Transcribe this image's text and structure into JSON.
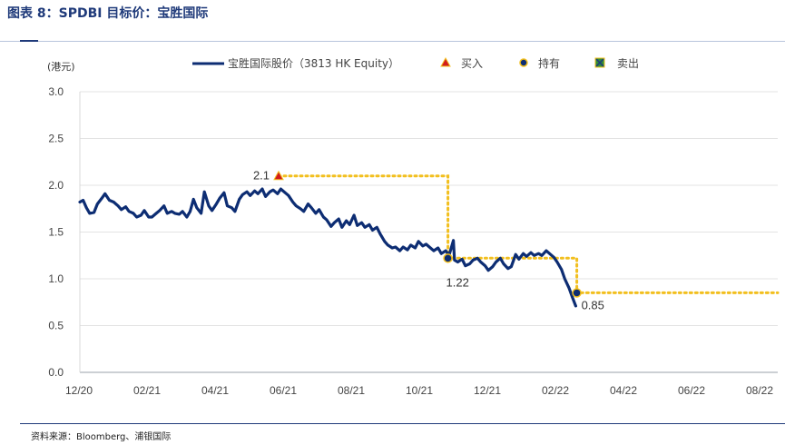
{
  "figure": {
    "title": "图表 8：SPDBI 目标价：宝胜国际",
    "source": "资料来源：Bloomberg、浦银国际"
  },
  "colors": {
    "price_line": "#0d2d73",
    "target_line": "#f2bf1e",
    "buy_marker": "#d21c1c",
    "hold_marker": "#0d2d73",
    "sell_marker": "#2f8c3a"
  },
  "chart_data": {
    "type": "line",
    "unit_label": "(港元)",
    "ylim": [
      0,
      3.0
    ],
    "yticks": [
      "0.0",
      "0.5",
      "1.0",
      "1.5",
      "2.0",
      "2.5",
      "3.0"
    ],
    "xticks": [
      "12/20",
      "02/21",
      "04/21",
      "06/21",
      "08/21",
      "10/21",
      "12/21",
      "02/22",
      "04/22",
      "06/22",
      "08/22"
    ],
    "xlim": [
      "2020-12-01",
      "2022-09-01"
    ],
    "grid": "horizontal",
    "legend": {
      "position": "top",
      "entries": [
        {
          "label": "宝胜国际股价（3813 HK Equity）",
          "marker": "line"
        },
        {
          "label": "买入",
          "marker": "triangle"
        },
        {
          "label": "持有",
          "marker": "circle"
        },
        {
          "label": "卖出",
          "marker": "square-x"
        }
      ]
    },
    "series": [
      {
        "name": "宝胜国际股价（3813 HK Equity）",
        "points": [
          [
            "2020-12-01",
            1.82
          ],
          [
            "2020-12-04",
            1.84
          ],
          [
            "2020-12-07",
            1.76
          ],
          [
            "2020-12-10",
            1.7
          ],
          [
            "2020-12-14",
            1.71
          ],
          [
            "2020-12-17",
            1.8
          ],
          [
            "2020-12-21",
            1.86
          ],
          [
            "2020-12-24",
            1.91
          ],
          [
            "2020-12-28",
            1.84
          ],
          [
            "2021-01-01",
            1.82
          ],
          [
            "2021-01-05",
            1.78
          ],
          [
            "2021-01-08",
            1.74
          ],
          [
            "2021-01-12",
            1.77
          ],
          [
            "2021-01-15",
            1.72
          ],
          [
            "2021-01-19",
            1.7
          ],
          [
            "2021-01-22",
            1.66
          ],
          [
            "2021-01-26",
            1.68
          ],
          [
            "2021-01-29",
            1.73
          ],
          [
            "2021-02-02",
            1.66
          ],
          [
            "2021-02-05",
            1.66
          ],
          [
            "2021-02-09",
            1.7
          ],
          [
            "2021-02-12",
            1.73
          ],
          [
            "2021-02-16",
            1.78
          ],
          [
            "2021-02-19",
            1.7
          ],
          [
            "2021-02-23",
            1.72
          ],
          [
            "2021-02-26",
            1.7
          ],
          [
            "2021-03-02",
            1.69
          ],
          [
            "2021-03-05",
            1.72
          ],
          [
            "2021-03-09",
            1.66
          ],
          [
            "2021-03-12",
            1.72
          ],
          [
            "2021-03-15",
            1.85
          ],
          [
            "2021-03-18",
            1.76
          ],
          [
            "2021-03-22",
            1.7
          ],
          [
            "2021-03-25",
            1.93
          ],
          [
            "2021-03-29",
            1.78
          ],
          [
            "2021-04-01",
            1.73
          ],
          [
            "2021-04-05",
            1.8
          ],
          [
            "2021-04-08",
            1.86
          ],
          [
            "2021-04-12",
            1.92
          ],
          [
            "2021-04-15",
            1.78
          ],
          [
            "2021-04-19",
            1.76
          ],
          [
            "2021-04-22",
            1.72
          ],
          [
            "2021-04-26",
            1.85
          ],
          [
            "2021-04-29",
            1.9
          ],
          [
            "2021-05-03",
            1.93
          ],
          [
            "2021-05-06",
            1.89
          ],
          [
            "2021-05-10",
            1.94
          ],
          [
            "2021-05-13",
            1.91
          ],
          [
            "2021-05-17",
            1.96
          ],
          [
            "2021-05-20",
            1.88
          ],
          [
            "2021-05-24",
            1.93
          ],
          [
            "2021-05-27",
            1.95
          ],
          [
            "2021-05-31",
            1.91
          ],
          [
            "2021-06-03",
            1.96
          ],
          [
            "2021-06-07",
            1.92
          ],
          [
            "2021-06-10",
            1.89
          ],
          [
            "2021-06-14",
            1.82
          ],
          [
            "2021-06-17",
            1.78
          ],
          [
            "2021-06-21",
            1.75
          ],
          [
            "2021-06-24",
            1.72
          ],
          [
            "2021-06-28",
            1.8
          ],
          [
            "2021-07-01",
            1.76
          ],
          [
            "2021-07-05",
            1.7
          ],
          [
            "2021-07-08",
            1.74
          ],
          [
            "2021-07-12",
            1.66
          ],
          [
            "2021-07-15",
            1.63
          ],
          [
            "2021-07-19",
            1.56
          ],
          [
            "2021-07-22",
            1.6
          ],
          [
            "2021-07-26",
            1.64
          ],
          [
            "2021-07-29",
            1.55
          ],
          [
            "2021-08-02",
            1.62
          ],
          [
            "2021-08-05",
            1.58
          ],
          [
            "2021-08-09",
            1.68
          ],
          [
            "2021-08-12",
            1.57
          ],
          [
            "2021-08-16",
            1.6
          ],
          [
            "2021-08-19",
            1.55
          ],
          [
            "2021-08-23",
            1.58
          ],
          [
            "2021-08-26",
            1.52
          ],
          [
            "2021-08-30",
            1.55
          ],
          [
            "2021-09-02",
            1.48
          ],
          [
            "2021-09-06",
            1.4
          ],
          [
            "2021-09-09",
            1.36
          ],
          [
            "2021-09-13",
            1.33
          ],
          [
            "2021-09-16",
            1.34
          ],
          [
            "2021-09-20",
            1.3
          ],
          [
            "2021-09-23",
            1.34
          ],
          [
            "2021-09-27",
            1.31
          ],
          [
            "2021-09-30",
            1.36
          ],
          [
            "2021-10-04",
            1.33
          ],
          [
            "2021-10-07",
            1.4
          ],
          [
            "2021-10-11",
            1.35
          ],
          [
            "2021-10-14",
            1.37
          ],
          [
            "2021-10-18",
            1.33
          ],
          [
            "2021-10-21",
            1.3
          ],
          [
            "2021-10-25",
            1.33
          ],
          [
            "2021-10-28",
            1.27
          ],
          [
            "2021-11-01",
            1.3
          ],
          [
            "2021-11-04",
            1.25
          ],
          [
            "2021-11-08",
            1.41
          ],
          [
            "2021-11-09",
            1.2
          ],
          [
            "2021-11-12",
            1.18
          ],
          [
            "2021-11-16",
            1.21
          ],
          [
            "2021-11-19",
            1.14
          ],
          [
            "2021-11-23",
            1.16
          ],
          [
            "2021-11-26",
            1.2
          ],
          [
            "2021-11-30",
            1.22
          ],
          [
            "2021-12-03",
            1.18
          ],
          [
            "2021-12-07",
            1.14
          ],
          [
            "2021-12-10",
            1.09
          ],
          [
            "2021-12-14",
            1.13
          ],
          [
            "2021-12-17",
            1.18
          ],
          [
            "2021-12-21",
            1.22
          ],
          [
            "2021-12-24",
            1.16
          ],
          [
            "2021-12-28",
            1.11
          ],
          [
            "2021-12-31",
            1.13
          ],
          [
            "2022-01-04",
            1.26
          ],
          [
            "2022-01-07",
            1.21
          ],
          [
            "2022-01-11",
            1.27
          ],
          [
            "2022-01-14",
            1.24
          ],
          [
            "2022-01-18",
            1.28
          ],
          [
            "2022-01-21",
            1.25
          ],
          [
            "2022-01-25",
            1.27
          ],
          [
            "2022-01-28",
            1.25
          ],
          [
            "2022-02-01",
            1.3
          ],
          [
            "2022-02-04",
            1.27
          ],
          [
            "2022-02-08",
            1.23
          ],
          [
            "2022-02-11",
            1.18
          ],
          [
            "2022-02-15",
            1.1
          ],
          [
            "2022-02-18",
            1.0
          ],
          [
            "2022-02-22",
            0.9
          ],
          [
            "2022-02-25",
            0.8
          ],
          [
            "2022-02-28",
            0.71
          ]
        ]
      }
    ],
    "target_price": {
      "name": "目标价",
      "steps": [
        [
          "2021-06-01",
          2.1
        ],
        [
          "2021-11-03",
          2.1
        ],
        [
          "2021-11-03",
          1.22
        ],
        [
          "2022-03-01",
          1.22
        ],
        [
          "2022-03-01",
          0.85
        ],
        [
          "2022-09-01",
          0.85
        ]
      ]
    },
    "markers": [
      {
        "date": "2021-06-01",
        "value": 2.1,
        "type": "buy",
        "label": "2.1"
      },
      {
        "date": "2021-11-03",
        "value": 1.22,
        "type": "hold",
        "label": "1.22"
      },
      {
        "date": "2022-03-01",
        "value": 0.85,
        "type": "hold",
        "label": "0.85"
      }
    ]
  }
}
